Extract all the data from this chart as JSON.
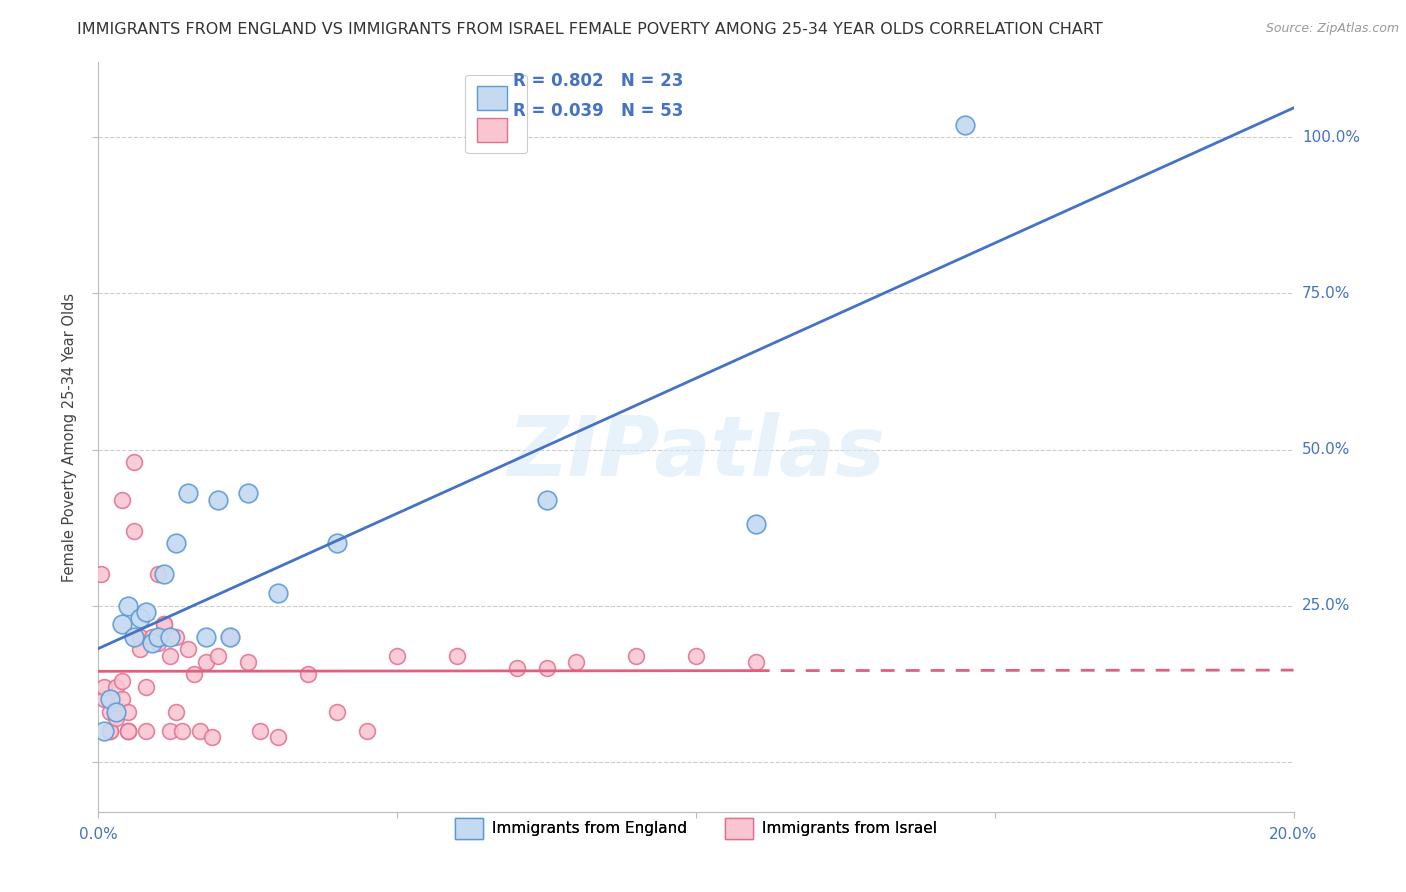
{
  "title": "IMMIGRANTS FROM ENGLAND VS IMMIGRANTS FROM ISRAEL FEMALE POVERTY AMONG 25-34 YEAR OLDS CORRELATION CHART",
  "source": "Source: ZipAtlas.com",
  "ylabel": "Female Poverty Among 25-34 Year Olds",
  "legend_england_r": "0.802",
  "legend_england_n": "23",
  "legend_israel_r": "0.039",
  "legend_israel_n": "53",
  "legend_label_england": "Immigrants from England",
  "legend_label_israel": "Immigrants from Israel",
  "color_england_fill": "#c5d9f1",
  "color_england_edge": "#5b9bd5",
  "color_england_line": "#4472c4",
  "color_israel_fill": "#f9c5d0",
  "color_israel_edge": "#e07090",
  "color_israel_line": "#e06080",
  "watermark": "ZIPatlas",
  "england_x": [
    0.1,
    0.2,
    0.3,
    0.4,
    0.5,
    0.6,
    0.7,
    0.8,
    0.9,
    1.0,
    1.1,
    1.2,
    1.3,
    1.5,
    1.8,
    2.0,
    2.2,
    2.5,
    3.0,
    4.0,
    7.5,
    11.0,
    14.5
  ],
  "england_y": [
    5.0,
    10.0,
    8.0,
    22.0,
    25.0,
    20.0,
    23.0,
    24.0,
    19.0,
    20.0,
    30.0,
    20.0,
    35.0,
    43.0,
    20.0,
    42.0,
    20.0,
    43.0,
    27.0,
    35.0,
    42.0,
    38.0,
    102.0
  ],
  "israel_x": [
    0.05,
    0.1,
    0.1,
    0.2,
    0.2,
    0.2,
    0.3,
    0.3,
    0.3,
    0.4,
    0.4,
    0.4,
    0.5,
    0.5,
    0.5,
    0.5,
    0.6,
    0.6,
    0.7,
    0.7,
    0.8,
    0.8,
    0.9,
    1.0,
    1.0,
    1.1,
    1.1,
    1.2,
    1.2,
    1.3,
    1.3,
    1.4,
    1.5,
    1.6,
    1.7,
    1.8,
    1.9,
    2.0,
    2.2,
    2.5,
    2.7,
    3.0,
    3.5,
    4.0,
    4.5,
    5.0,
    6.0,
    7.0,
    7.5,
    8.0,
    9.0,
    10.0,
    11.0
  ],
  "israel_y": [
    30.0,
    10.0,
    12.0,
    5.0,
    8.0,
    5.0,
    8.0,
    12.0,
    7.0,
    42.0,
    10.0,
    13.0,
    5.0,
    8.0,
    5.0,
    5.0,
    48.0,
    37.0,
    20.0,
    18.0,
    12.0,
    5.0,
    20.0,
    19.0,
    30.0,
    22.0,
    22.0,
    17.0,
    5.0,
    20.0,
    8.0,
    5.0,
    18.0,
    14.0,
    5.0,
    16.0,
    4.0,
    17.0,
    20.0,
    16.0,
    5.0,
    4.0,
    14.0,
    8.0,
    5.0,
    17.0,
    17.0,
    15.0,
    15.0,
    16.0,
    17.0,
    17.0,
    16.0
  ],
  "xlim": [
    0.0,
    20.0
  ],
  "ylim": [
    -8.0,
    112.0
  ],
  "yticks": [
    0,
    25,
    50,
    75,
    100
  ],
  "ytick_labels": [
    "",
    "25.0%",
    "50.0%",
    "75.0%",
    "100.0%"
  ],
  "xtick_positions": [
    0.0,
    5.0,
    10.0,
    15.0,
    20.0
  ],
  "background_color": "#ffffff",
  "grid_color": "#cccccc",
  "title_fontsize": 11.5,
  "source_fontsize": 9,
  "axis_label_color": "#4472c4",
  "text_color": "#333333"
}
